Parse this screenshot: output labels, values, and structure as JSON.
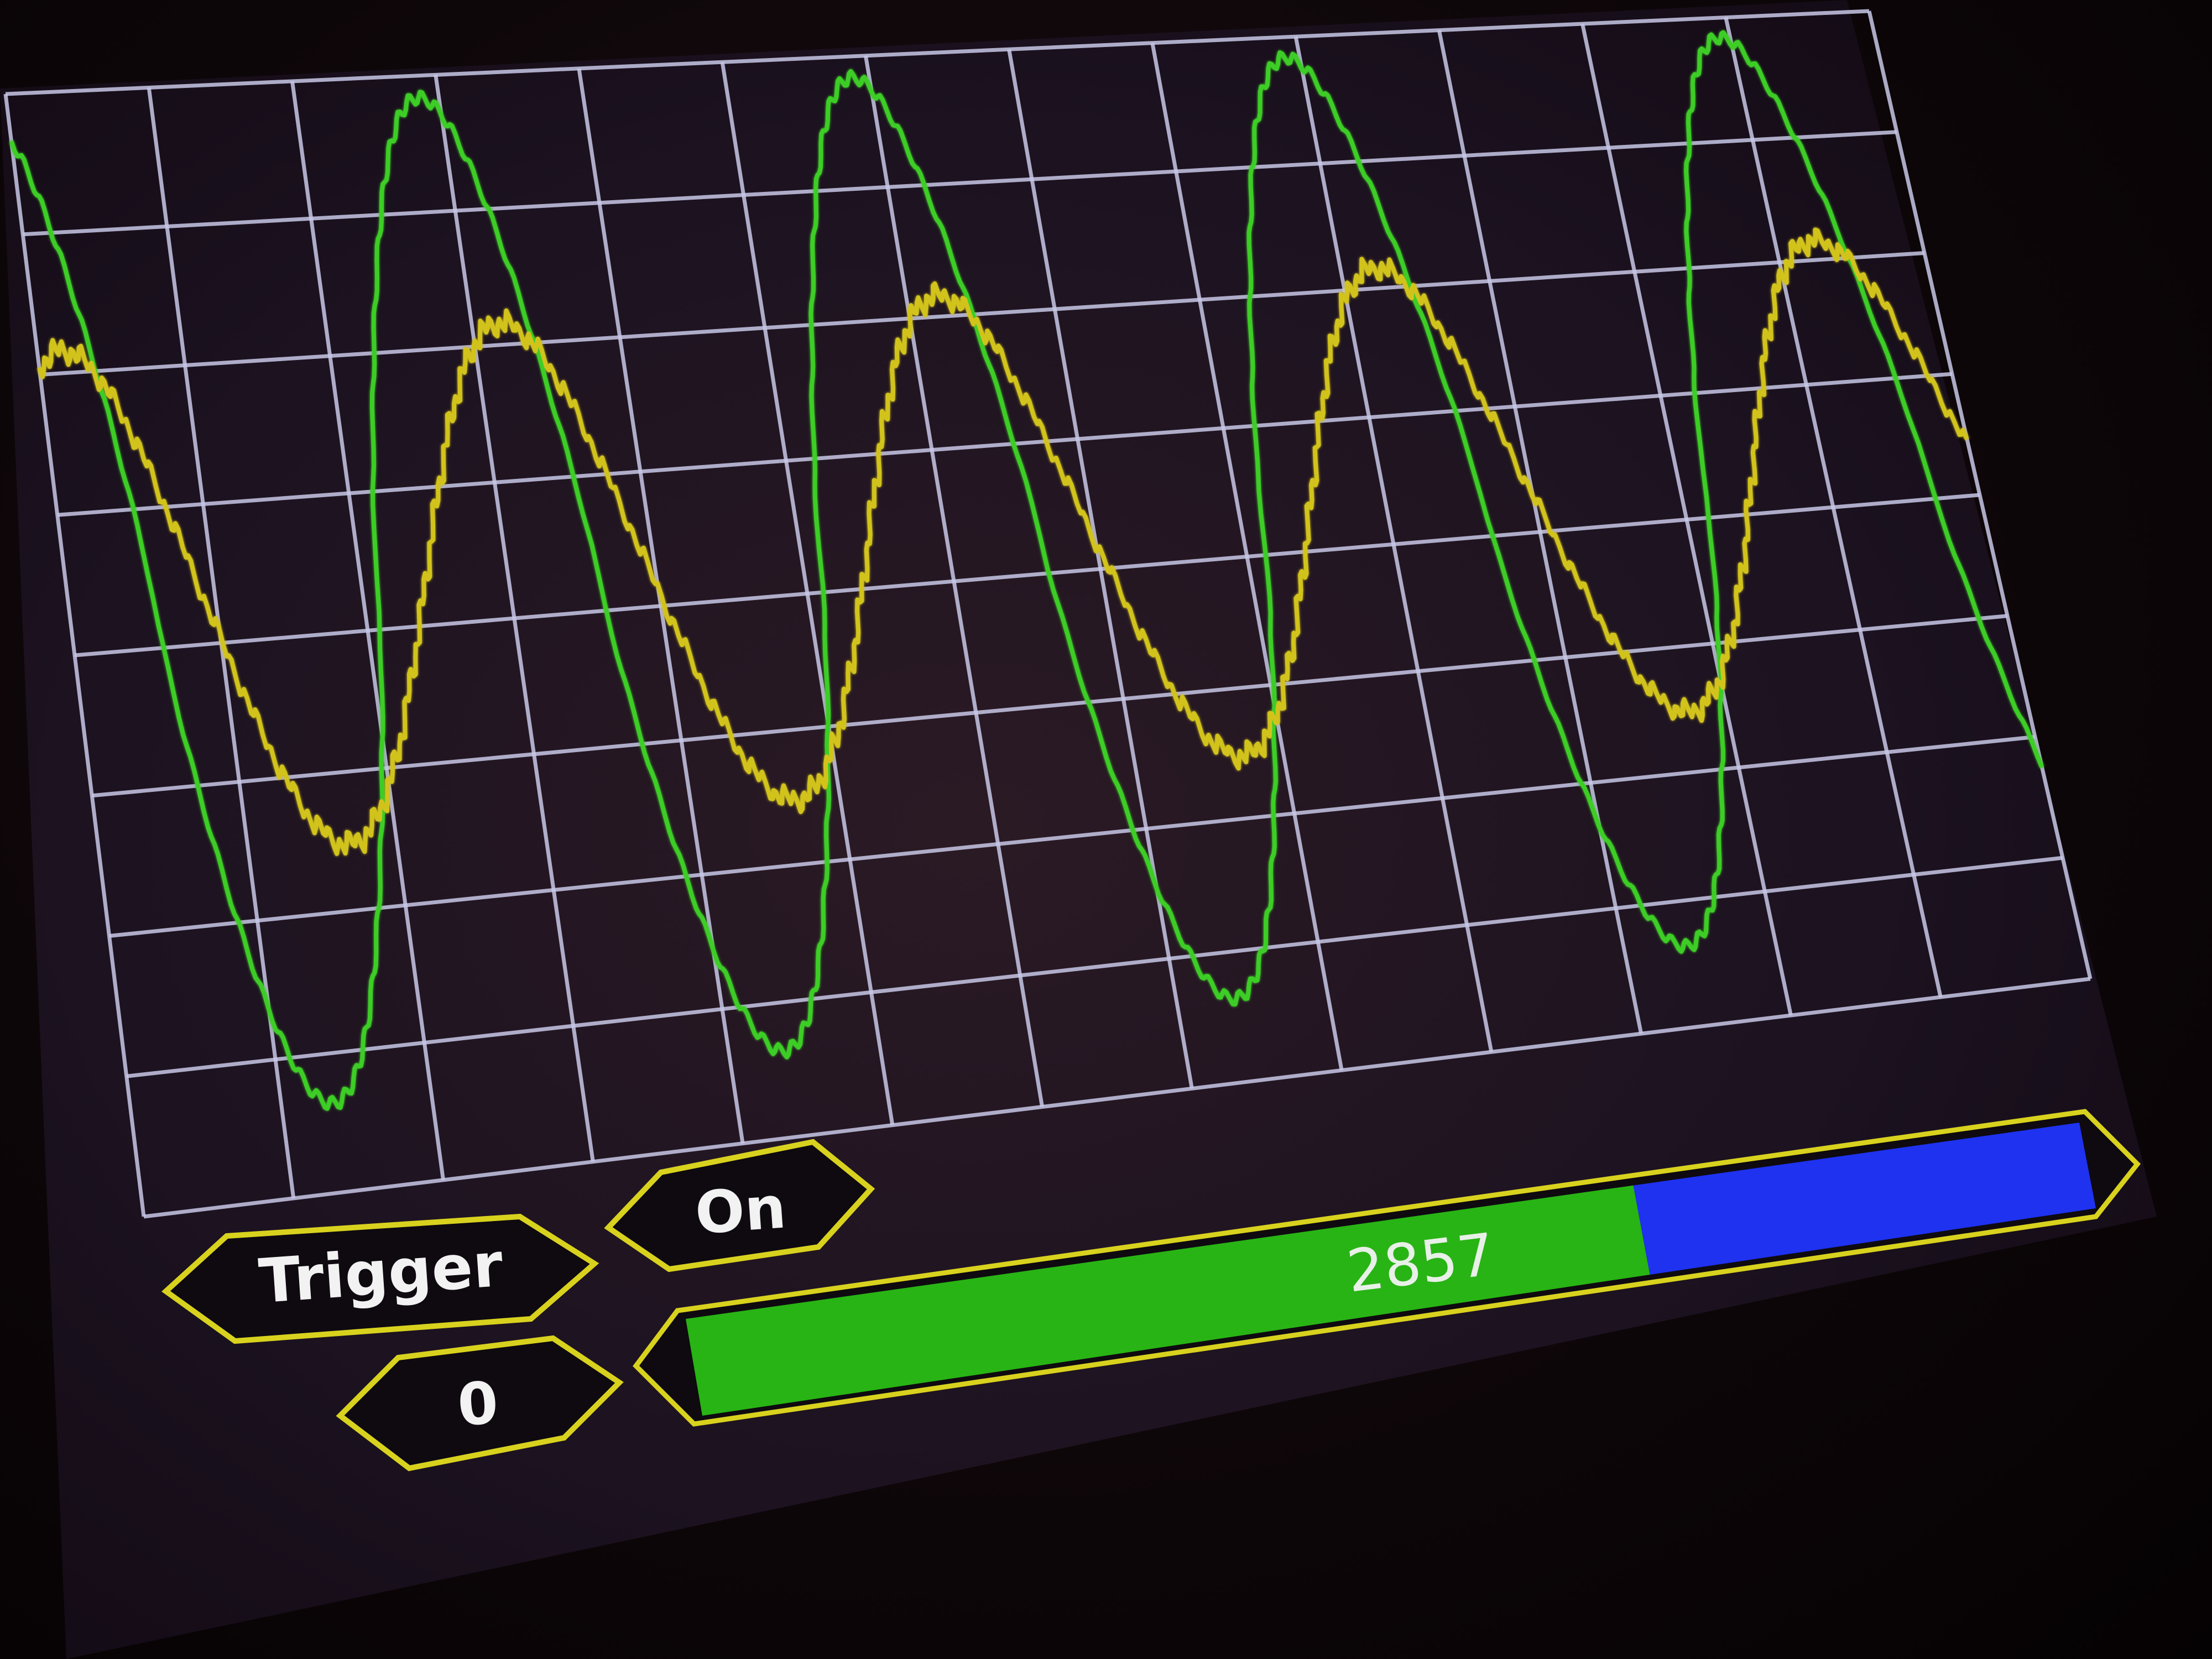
{
  "controls": {
    "trigger_label": "Trigger",
    "trigger_state": "On",
    "trigger_level": "0"
  },
  "level_bar": {
    "value_text": "2857",
    "fill_fraction": 0.68,
    "fill_color": "#28b414",
    "remainder_color": "#1e32f0",
    "outline_color": "#d8d21e"
  },
  "scope": {
    "grid_color": "#c8c8e6",
    "channels": [
      {
        "id": "ch1",
        "color": "#3ccd28"
      },
      {
        "id": "ch2",
        "color": "#d2c31e"
      }
    ]
  }
}
